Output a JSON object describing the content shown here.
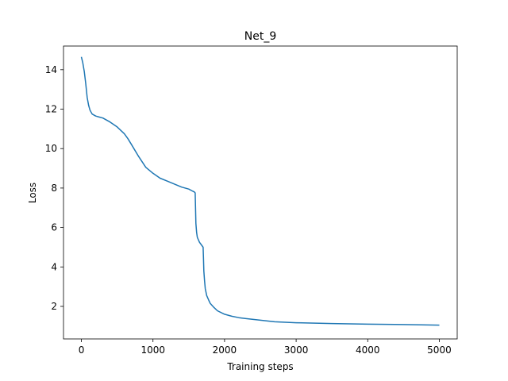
{
  "chart_data": {
    "type": "line",
    "title": "Net_9",
    "xlabel": "Training steps",
    "ylabel": "Loss",
    "xlim": [
      -250,
      5250
    ],
    "ylim": [
      0.35,
      15.2
    ],
    "xticks": [
      0,
      1000,
      2000,
      3000,
      4000,
      5000
    ],
    "yticks": [
      2,
      4,
      6,
      8,
      10,
      12,
      14
    ],
    "grid": false,
    "line_color": "#1f77b4",
    "series": [
      {
        "x": [
          0,
          20,
          40,
          60,
          80,
          100,
          120,
          150,
          200,
          250,
          300,
          400,
          500,
          600,
          650,
          700,
          800,
          900,
          1000,
          1100,
          1200,
          1300,
          1400,
          1500,
          1550,
          1580,
          1590,
          1600,
          1610,
          1620,
          1650,
          1680,
          1700,
          1705,
          1710,
          1720,
          1730,
          1750,
          1780,
          1800,
          1850,
          1900,
          2000,
          2100,
          2200,
          2300,
          2500,
          2700,
          3000,
          3500,
          4000,
          4500,
          5000
        ],
        "y": [
          14.65,
          14.35,
          13.9,
          13.3,
          12.6,
          12.2,
          11.95,
          11.75,
          11.65,
          11.6,
          11.55,
          11.35,
          11.1,
          10.75,
          10.5,
          10.2,
          9.6,
          9.05,
          8.75,
          8.5,
          8.35,
          8.2,
          8.05,
          7.95,
          7.85,
          7.8,
          7.75,
          6.2,
          5.75,
          5.5,
          5.25,
          5.1,
          5.0,
          4.5,
          3.8,
          3.3,
          2.9,
          2.55,
          2.3,
          2.15,
          1.95,
          1.78,
          1.6,
          1.5,
          1.43,
          1.38,
          1.3,
          1.22,
          1.17,
          1.13,
          1.1,
          1.08,
          1.05
        ]
      }
    ]
  }
}
